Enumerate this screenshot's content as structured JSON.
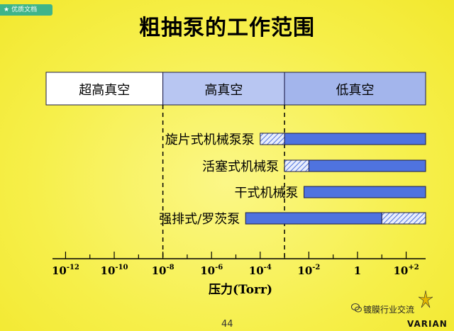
{
  "badge": {
    "label": "优质文档",
    "icon": "star-icon"
  },
  "title": "粗抽泵的工作范围",
  "chart_data": {
    "type": "range-bar",
    "title": "粗抽泵的工作范围",
    "xlabel": "压力(Torr)",
    "x_scale": "log10",
    "xlim_exponent": [
      -12.8,
      2.8
    ],
    "ticks": [
      {
        "exp": -12,
        "base": "10",
        "sup": "-12"
      },
      {
        "exp": -10,
        "base": "10",
        "sup": "-10"
      },
      {
        "exp": -8,
        "base": "10",
        "sup": "-8"
      },
      {
        "exp": -6,
        "base": "10",
        "sup": "-6"
      },
      {
        "exp": -4,
        "base": "10",
        "sup": "-4"
      },
      {
        "exp": -2,
        "base": "10",
        "sup": "-2"
      },
      {
        "exp": 0,
        "base": "1",
        "sup": ""
      },
      {
        "exp": 2,
        "base": "10",
        "sup": "+2"
      }
    ],
    "regions": [
      {
        "label": "超高真空",
        "from_exp": -12.8,
        "to_exp": -8,
        "color": "#ffffff"
      },
      {
        "label": "高真空",
        "from_exp": -8,
        "to_exp": -3,
        "color": "#b8c6f2"
      },
      {
        "label": "低真空",
        "from_exp": -3,
        "to_exp": 2.8,
        "color": "#a3b5ec"
      }
    ],
    "boundaries_exp": [
      -8,
      -3
    ],
    "pumps": [
      {
        "label": "旋片式机械泵泵",
        "solid": [
          -3,
          2.8
        ],
        "hatched": [
          -4,
          -3
        ]
      },
      {
        "label": "活塞式机械泵",
        "solid": [
          -2,
          2.8
        ],
        "hatched": [
          -3,
          -2
        ]
      },
      {
        "label": "干式机械泵",
        "solid": [
          -2.2,
          2.8
        ],
        "hatched": null
      },
      {
        "label": "强排式/罗茨泵",
        "solid": [
          -4.6,
          1
        ],
        "hatched": [
          1,
          2.8
        ]
      }
    ],
    "colors": {
      "solid": "#4f73df",
      "hatched_stroke": "#4f73df",
      "outline": "#1a1a4a"
    }
  },
  "footer": {
    "page": "44",
    "watermark": "镀膜行业交流",
    "brand": "VARIAN"
  }
}
